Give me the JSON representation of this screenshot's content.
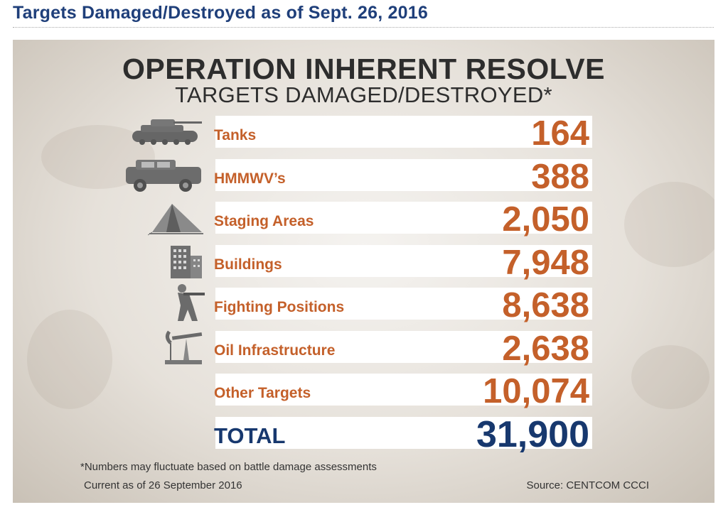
{
  "page": {
    "title": "Targets Damaged/Destroyed as of Sept. 26, 2016"
  },
  "infographic": {
    "heading": "OPERATION INHERENT RESOLVE",
    "subheading": "TARGETS DAMAGED/DESTROYED*",
    "footnote": "*Numbers may fluctuate based on battle damage assessments",
    "current": "Current as of 26 September 2016",
    "source": "Source: CENTCOM CCCI",
    "accent_color": "#c4602a",
    "total_color": "#17386e"
  },
  "chart_data": {
    "type": "table",
    "title": "OPERATION INHERENT RESOLVE",
    "subtitle": "TARGETS DAMAGED/DESTROYED*",
    "rows": [
      {
        "label": "Tanks",
        "value": 164,
        "display": "164",
        "icon": "tank-icon"
      },
      {
        "label": "HMMWV’s",
        "value": 388,
        "display": "388",
        "icon": "humvee-icon"
      },
      {
        "label": "Staging Areas",
        "value": 2050,
        "display": "2,050",
        "icon": "tent-icon"
      },
      {
        "label": "Buildings",
        "value": 7948,
        "display": "7,948",
        "icon": "building-icon"
      },
      {
        "label": "Fighting Positions",
        "value": 8638,
        "display": "8,638",
        "icon": "soldier-icon"
      },
      {
        "label": "Oil Infrastructure",
        "value": 2638,
        "display": "2,638",
        "icon": "oil-pump-icon"
      },
      {
        "label": "Other Targets",
        "value": 10074,
        "display": "10,074",
        "icon": ""
      }
    ],
    "total": {
      "label": "TOTAL",
      "value": 31900,
      "display": "31,900"
    }
  }
}
